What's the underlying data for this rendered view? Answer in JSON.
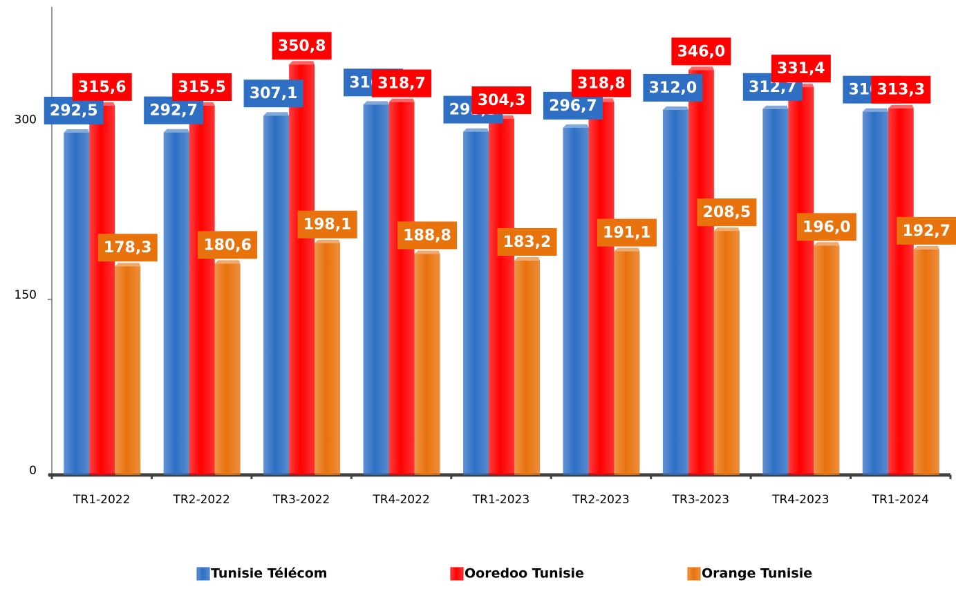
{
  "chart_data": {
    "type": "bar",
    "categories": [
      "TR1-2022",
      "TR2-2022",
      "TR3-2022",
      "TR4-2022",
      "TR1-2023",
      "TR2-2023",
      "TR3-2023",
      "TR4-2023",
      "TR1-2024"
    ],
    "series": [
      {
        "name": "Tunisie Télécom",
        "color": "#2e6fc4",
        "values": [
          292.5,
          292.7,
          307.1,
          316.5,
          293.3,
          296.7,
          312.0,
          312.7,
          310.4
        ],
        "value_labels": [
          "292,5",
          "292,7",
          "307,1",
          "316,5",
          "293,3",
          "296,7",
          "312,0",
          "312,7",
          "310,4"
        ]
      },
      {
        "name": "Ooredoo Tunisie",
        "color": "#ff0000",
        "values": [
          315.6,
          315.5,
          350.8,
          318.7,
          304.3,
          318.8,
          346.0,
          331.4,
          313.3
        ],
        "value_labels": [
          "315,6",
          "315,5",
          "350,8",
          "318,7",
          "304,3",
          "318,8",
          "346,0",
          "331,4",
          "313,3"
        ]
      },
      {
        "name": "Orange Tunisie",
        "color": "#e8720c",
        "values": [
          178.3,
          180.6,
          198.1,
          188.8,
          183.2,
          191.1,
          208.5,
          196.0,
          192.7
        ],
        "value_labels": [
          "178,3",
          "180,6",
          "198,1",
          "188,8",
          "183,2",
          "191,1",
          "208,5",
          "196,0",
          "192,7"
        ]
      }
    ],
    "ylim": [
      0,
      400
    ],
    "yticks": [
      0,
      150,
      300
    ],
    "grid": false,
    "legend": "bottom"
  }
}
